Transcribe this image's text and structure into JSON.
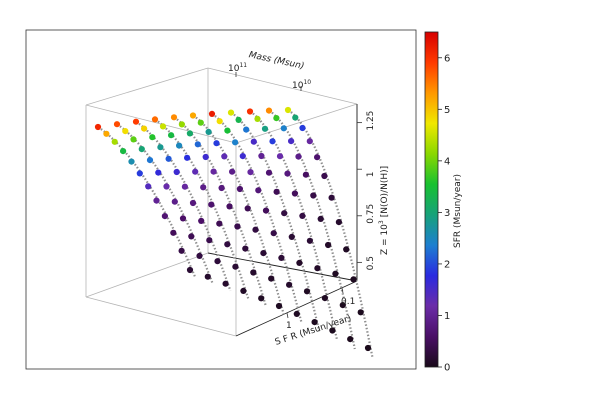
{
  "chart_data": {
    "type": "scatter",
    "title": "",
    "axes": {
      "mass": {
        "label": "Mass (Msun)",
        "ticks": [
          {
            "base": "10",
            "exp": "11"
          },
          {
            "base": "10",
            "exp": "10"
          }
        ]
      },
      "sfr": {
        "label": "S F R (Msun/year)",
        "ticks": [
          "1",
          "0.1"
        ]
      },
      "z": {
        "label": "Z = 10",
        "label_exp": "3",
        "label_tail": "[N(O)/N(H)]",
        "range": [
          0.4,
          1.35
        ],
        "ticks": [
          "0.5",
          "0.75",
          "1",
          "1.25"
        ]
      }
    },
    "colorbar": {
      "label": "SFR (Msun/year)",
      "range": [
        0,
        6.5
      ],
      "ticks": [
        "0",
        "1",
        "2",
        "3",
        "4",
        "5",
        "6"
      ],
      "colormap": [
        "#1a0a1a",
        "#4a0f66",
        "#6b2ca8",
        "#2a2ae0",
        "#1d7fd0",
        "#17a27a",
        "#18c130",
        "#8ad800",
        "#f0e800",
        "#ff9800",
        "#ff3a00",
        "#d60000"
      ]
    },
    "series": [
      {
        "sfr": [
          6.1,
          5.2,
          4.3,
          3.4,
          2.6,
          1.9,
          1.4,
          1.0,
          0.7,
          0.5,
          0.35,
          0.2
        ]
      },
      {
        "sfr": [
          5.8,
          4.8,
          3.9,
          3.0,
          2.3,
          1.7,
          1.2,
          0.9,
          0.6,
          0.45,
          0.3,
          0.15
        ]
      },
      {
        "sfr": [
          5.9,
          4.9,
          3.6,
          2.8,
          2.1,
          1.6,
          1.1,
          0.8,
          0.6,
          0.4,
          0.25,
          0.15
        ]
      },
      {
        "sfr": [
          5.6,
          4.5,
          3.4,
          2.5,
          1.8,
          1.3,
          0.9,
          0.65,
          0.45,
          0.3,
          0.2,
          0.1
        ]
      },
      {
        "sfr": [
          5.4,
          4.2,
          3.1,
          2.2,
          1.6,
          1.1,
          0.8,
          0.55,
          0.4,
          0.25,
          0.15,
          0.08
        ]
      },
      {
        "sfr": [
          5.2,
          3.9,
          2.8,
          1.9,
          1.3,
          0.9,
          0.65,
          0.45,
          0.3,
          0.2,
          0.12,
          0.06
        ]
      },
      {
        "sfr": [
          6.2,
          4.8,
          3.5,
          2.4,
          1.6,
          1.1,
          0.75,
          0.5,
          0.35,
          0.22,
          0.14,
          0.07
        ]
      },
      {
        "sfr": [
          4.6,
          3.3,
          2.3,
          1.5,
          1.0,
          0.7,
          0.45,
          0.3,
          0.2,
          0.12,
          0.07,
          0.04
        ]
      },
      {
        "sfr": [
          6.0,
          4.3,
          2.9,
          1.9,
          1.2,
          0.8,
          0.5,
          0.32,
          0.2,
          0.12,
          0.07,
          0.03
        ]
      },
      {
        "sfr": [
          5.4,
          3.7,
          2.4,
          1.5,
          0.9,
          0.55,
          0.35,
          0.2,
          0.12,
          0.07,
          0.04,
          0.02
        ]
      },
      {
        "sfr": [
          4.6,
          3.0,
          1.9,
          1.1,
          0.65,
          0.4,
          0.24,
          0.14,
          0.08,
          0.05,
          0.03,
          0.01
        ]
      }
    ]
  }
}
